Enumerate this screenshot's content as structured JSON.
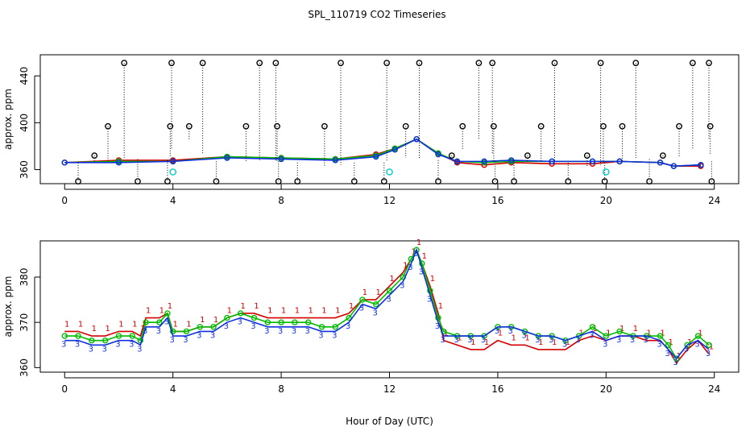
{
  "chart_data": [
    {
      "type": "scatter",
      "title": "SPL_110719  CO2 Timeseries",
      "xlabel": "",
      "ylabel": "approx. ppm",
      "xlim": [
        -0.9,
        24.9
      ],
      "ylim": [
        348,
        458
      ],
      "xticks": [
        0,
        4,
        8,
        12,
        16,
        20,
        24
      ],
      "yticks": [
        360,
        400,
        440
      ],
      "series": [
        {
          "name": "red",
          "color": "#d40000",
          "x": [
            0,
            2,
            4,
            6,
            8,
            10,
            11.5,
            12.2,
            13,
            13.8,
            14.5,
            15.5,
            16.5,
            18,
            19.5,
            20.5,
            22,
            22.5,
            23.5
          ],
          "y": [
            366,
            368,
            368,
            371,
            370,
            369,
            373,
            378,
            386,
            374,
            366,
            364,
            366,
            365,
            365,
            367,
            366,
            363,
            363
          ]
        },
        {
          "name": "green",
          "color": "#00bb00",
          "x": [
            0,
            2,
            4,
            6,
            8,
            10,
            11.5,
            12.2,
            13,
            13.8,
            14.5,
            15.5,
            16.5,
            18,
            19.5,
            20.5,
            22,
            22.5,
            23.5
          ],
          "y": [
            366,
            367,
            367,
            371,
            370,
            369,
            372,
            378,
            386,
            374,
            367,
            366,
            367,
            367,
            367,
            367,
            366,
            363,
            364
          ]
        },
        {
          "name": "blue",
          "color": "#1030e0",
          "x": [
            0,
            2,
            4,
            6,
            8,
            10,
            11.5,
            12.2,
            13,
            13.8,
            14.5,
            15.5,
            16.5,
            18,
            19.5,
            20.5,
            22,
            22.5,
            23.5
          ],
          "y": [
            366,
            366,
            367,
            370,
            369,
            368,
            371,
            377,
            386,
            373,
            367,
            367,
            368,
            367,
            367,
            367,
            366,
            363,
            364
          ]
        },
        {
          "name": "black-spikes",
          "color": "#000000",
          "x": [
            0.5,
            1.1,
            1.6,
            2.2,
            2.7,
            3.8,
            3.9,
            3.95,
            4.6,
            5.1,
            5.6,
            6.7,
            7.2,
            7.8,
            7.85,
            7.9,
            8.6,
            9.6,
            10.2,
            10.7,
            11.8,
            11.9,
            12.6,
            13.1,
            13.8,
            14.3,
            14.7,
            15.3,
            15.8,
            15.85,
            15.9,
            16.6,
            17.1,
            17.6,
            18.1,
            18.6,
            19.3,
            19.8,
            19.9,
            19.95,
            20.6,
            21.1,
            21.6,
            22.1,
            22.7,
            23.2,
            23.8,
            23.85,
            23.9
          ],
          "y": [
            350,
            372,
            397,
            451,
            350,
            350,
            397,
            451,
            397,
            451,
            350,
            397,
            451,
            451,
            397,
            350,
            350,
            397,
            451,
            350,
            350,
            451,
            397,
            451,
            350,
            372,
            397,
            451,
            451,
            397,
            350,
            350,
            372,
            397,
            451,
            350,
            372,
            451,
            397,
            350,
            397,
            451,
            350,
            372,
            397,
            451,
            451,
            397,
            350
          ]
        },
        {
          "name": "cyan",
          "color": "#00cccc",
          "x": [
            4.0,
            12.0,
            20.0
          ],
          "y": [
            358,
            358,
            358
          ]
        }
      ]
    },
    {
      "type": "scatter",
      "title": "",
      "xlabel": "Hour of Day (UTC)",
      "ylabel": "approx. ppm",
      "xlim": [
        -0.9,
        24.9
      ],
      "ylim": [
        359,
        388
      ],
      "xticks": [
        0,
        4,
        8,
        12,
        16,
        20,
        24
      ],
      "yticks": [
        360,
        370,
        380
      ],
      "marker_labels": {
        "red": "1",
        "blue": "3"
      },
      "series": [
        {
          "name": "red",
          "color": "#d40000",
          "x": [
            0,
            0.5,
            1,
            1.5,
            2,
            2.5,
            2.8,
            3,
            3.5,
            3.8,
            4,
            4.5,
            5,
            5.5,
            6,
            6.5,
            7,
            7.5,
            8,
            8.5,
            9,
            9.5,
            10,
            10.5,
            11,
            11.5,
            12,
            12.5,
            12.8,
            13,
            13.2,
            13.5,
            13.8,
            14,
            14.5,
            15,
            15.5,
            16,
            16.5,
            17,
            17.5,
            18,
            18.5,
            19,
            19.5,
            20,
            20.5,
            21,
            21.5,
            22,
            22.3,
            22.6,
            23,
            23.4,
            23.8
          ],
          "y": [
            368,
            368,
            367,
            367,
            368,
            368,
            367,
            371,
            371,
            372,
            368,
            368,
            369,
            369,
            371,
            372,
            372,
            371,
            371,
            371,
            371,
            371,
            371,
            372,
            375,
            375,
            378,
            381,
            384,
            386,
            383,
            378,
            372,
            366,
            365,
            364,
            364,
            366,
            365,
            365,
            364,
            364,
            364,
            366,
            367,
            366,
            367,
            367,
            366,
            366,
            364,
            361,
            364,
            366,
            363
          ]
        },
        {
          "name": "green",
          "color": "#00bb00",
          "x": [
            0,
            0.5,
            1,
            1.5,
            2,
            2.5,
            2.8,
            3,
            3.5,
            3.8,
            4,
            4.5,
            5,
            5.5,
            6,
            6.5,
            7,
            7.5,
            8,
            8.5,
            9,
            9.5,
            10,
            10.5,
            11,
            11.5,
            12,
            12.5,
            12.8,
            13,
            13.2,
            13.5,
            13.8,
            14,
            14.5,
            15,
            15.5,
            16,
            16.5,
            17,
            17.5,
            18,
            18.5,
            19,
            19.5,
            20,
            20.5,
            21,
            21.5,
            22,
            22.3,
            22.6,
            23,
            23.4,
            23.8
          ],
          "y": [
            367,
            367,
            366,
            366,
            367,
            367,
            366,
            370,
            370,
            372,
            368,
            368,
            369,
            369,
            371,
            372,
            371,
            370,
            370,
            370,
            370,
            369,
            369,
            371,
            375,
            374,
            377,
            380,
            384,
            386,
            383,
            377,
            371,
            368,
            367,
            367,
            367,
            369,
            369,
            368,
            367,
            367,
            366,
            367,
            369,
            367,
            368,
            367,
            367,
            367,
            365,
            362,
            365,
            367,
            365
          ]
        },
        {
          "name": "blue",
          "color": "#1030e0",
          "x": [
            0,
            0.5,
            1,
            1.5,
            2,
            2.5,
            2.8,
            3,
            3.5,
            3.8,
            4,
            4.5,
            5,
            5.5,
            6,
            6.5,
            7,
            7.5,
            8,
            8.5,
            9,
            9.5,
            10,
            10.5,
            11,
            11.5,
            12,
            12.5,
            12.8,
            13,
            13.2,
            13.5,
            13.8,
            14,
            14.5,
            15,
            15.5,
            16,
            16.5,
            17,
            17.5,
            18,
            18.5,
            19,
            19.5,
            20,
            20.5,
            21,
            21.5,
            22,
            22.3,
            22.6,
            23,
            23.4,
            23.8
          ],
          "y": [
            366,
            366,
            365,
            365,
            366,
            366,
            365,
            369,
            369,
            371,
            367,
            367,
            368,
            368,
            370,
            371,
            370,
            369,
            369,
            369,
            369,
            368,
            368,
            370,
            374,
            373,
            376,
            379,
            383,
            386,
            382,
            376,
            370,
            367,
            367,
            367,
            367,
            369,
            369,
            368,
            367,
            367,
            366,
            367,
            368,
            366,
            367,
            367,
            367,
            366,
            364,
            362,
            365,
            366,
            364
          ]
        }
      ]
    }
  ]
}
